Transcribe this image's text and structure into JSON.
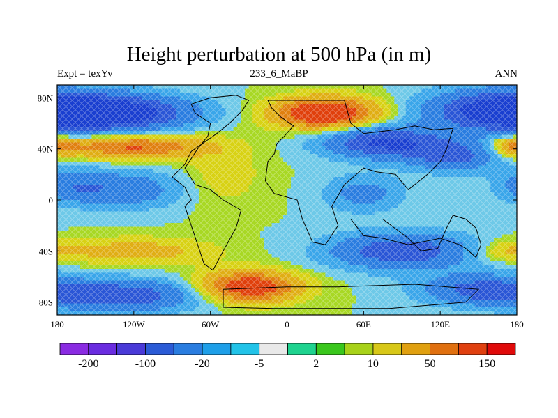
{
  "title": "Height perturbation at 500 hPa (in m)",
  "subtitle_left": "Expt = texYv",
  "subtitle_center": "233_6_MaBP",
  "subtitle_right": "ANN",
  "chart_data": {
    "type": "heatmap",
    "title": "Height perturbation at 500 hPa (in m)",
    "xlim": [
      -180,
      180
    ],
    "ylim": [
      -90,
      90
    ],
    "x_ticks": [
      {
        "value": -180,
        "label": "180"
      },
      {
        "value": -120,
        "label": "120W"
      },
      {
        "value": -60,
        "label": "60W"
      },
      {
        "value": 0,
        "label": "0"
      },
      {
        "value": 60,
        "label": "60E"
      },
      {
        "value": 120,
        "label": "120E"
      },
      {
        "value": 180,
        "label": "180"
      }
    ],
    "y_ticks": [
      {
        "value": 80,
        "label": "80N"
      },
      {
        "value": 40,
        "label": "40N"
      },
      {
        "value": 0,
        "label": "0"
      },
      {
        "value": -40,
        "label": "40S"
      },
      {
        "value": -80,
        "label": "80S"
      }
    ],
    "colorbar": {
      "colors": [
        "#8a2be2",
        "#6a2ce0",
        "#4a3ad8",
        "#2b5bd6",
        "#2a7de0",
        "#1e9fe8",
        "#22c3e8",
        "#e9e9e9",
        "#1fd38f",
        "#3ac71d",
        "#a8d21a",
        "#d8c818",
        "#e0a010",
        "#e07010",
        "#e04010",
        "#e00a0a"
      ],
      "labels": [
        {
          "boundary": 1,
          "text": "-200"
        },
        {
          "boundary": 3,
          "text": "-100"
        },
        {
          "boundary": 5,
          "text": "-20"
        },
        {
          "boundary": 7,
          "text": "-5"
        },
        {
          "boundary": 9,
          "text": "2"
        },
        {
          "boundary": 11,
          "text": "10"
        },
        {
          "boundary": 13,
          "text": "50"
        },
        {
          "boundary": 15,
          "text": "150"
        }
      ]
    },
    "field_levels": [
      {
        "min": -1000,
        "max": -150,
        "color": "#1a3fd0"
      },
      {
        "min": -150,
        "max": -100,
        "color": "#2a56d6"
      },
      {
        "min": -100,
        "max": -50,
        "color": "#2a7de0"
      },
      {
        "min": -50,
        "max": -20,
        "color": "#3aa6ea"
      },
      {
        "min": -20,
        "max": 0,
        "color": "#6ec9e8"
      },
      {
        "min": 0,
        "max": 15,
        "color": "#a8d824"
      },
      {
        "min": 15,
        "max": 40,
        "color": "#d8d214"
      },
      {
        "min": 40,
        "max": 80,
        "color": "#e0ae14"
      },
      {
        "min": 80,
        "max": 120,
        "color": "#e08010"
      },
      {
        "min": 120,
        "max": 1000,
        "color": "#e0400c"
      }
    ],
    "features": [
      {
        "lon": -135,
        "lat": 68,
        "value": -190,
        "slon": 60,
        "slat": 14
      },
      {
        "lon": 165,
        "lat": 70,
        "value": -170,
        "slon": 55,
        "slat": 16
      },
      {
        "lon": 75,
        "lat": 45,
        "value": -160,
        "slon": 45,
        "slat": 12
      },
      {
        "lon": 130,
        "lat": 35,
        "value": -120,
        "slon": 35,
        "slat": 12
      },
      {
        "lon": -120,
        "lat": 42,
        "value": 130,
        "slon": 55,
        "slat": 9
      },
      {
        "lon": 30,
        "lat": 68,
        "value": 190,
        "slon": 40,
        "slat": 12
      },
      {
        "lon": 178,
        "lat": 42,
        "value": 90,
        "slon": 18,
        "slat": 8
      },
      {
        "lon": -130,
        "lat": 8,
        "value": -90,
        "slon": 45,
        "slat": 14
      },
      {
        "lon": -170,
        "lat": 12,
        "value": -60,
        "slon": 25,
        "slat": 12
      },
      {
        "lon": -130,
        "lat": -75,
        "value": -140,
        "slon": 60,
        "slat": 12
      },
      {
        "lon": 90,
        "lat": -40,
        "value": -140,
        "slon": 55,
        "slat": 14
      },
      {
        "lon": 150,
        "lat": -70,
        "value": -110,
        "slon": 45,
        "slat": 12
      },
      {
        "lon": 60,
        "lat": 5,
        "value": -70,
        "slon": 30,
        "slat": 14
      },
      {
        "lon": -30,
        "lat": -68,
        "value": 170,
        "slon": 38,
        "slat": 12
      },
      {
        "lon": -120,
        "lat": -40,
        "value": 60,
        "slon": 60,
        "slat": 10
      },
      {
        "lon": 170,
        "lat": -40,
        "value": 40,
        "slon": 25,
        "slat": 8
      },
      {
        "lon": -50,
        "lat": 20,
        "value": 30,
        "slon": 30,
        "slat": 25
      }
    ],
    "continent_outlines": [
      [
        [
          -15,
          78
        ],
        [
          45,
          78
        ],
        [
          50,
          60
        ],
        [
          60,
          52
        ],
        [
          85,
          55
        ],
        [
          100,
          58
        ],
        [
          115,
          55
        ],
        [
          130,
          56
        ],
        [
          125,
          40
        ],
        [
          120,
          30
        ],
        [
          110,
          20
        ],
        [
          100,
          12
        ],
        [
          95,
          8
        ],
        [
          85,
          20
        ],
        [
          70,
          22
        ],
        [
          60,
          25
        ],
        [
          45,
          12
        ],
        [
          35,
          -5
        ],
        [
          40,
          -20
        ],
        [
          30,
          -35
        ],
        [
          20,
          -33
        ],
        [
          12,
          -15
        ],
        [
          8,
          0
        ],
        [
          -10,
          5
        ],
        [
          -17,
          15
        ],
        [
          -15,
          30
        ],
        [
          -10,
          36
        ],
        [
          -8,
          44
        ],
        [
          -2,
          50
        ],
        [
          5,
          58
        ],
        [
          -5,
          65
        ],
        [
          -12,
          72
        ],
        [
          -15,
          78
        ]
      ],
      [
        [
          -75,
          75
        ],
        [
          -60,
          80
        ],
        [
          -40,
          82
        ],
        [
          -30,
          78
        ],
        [
          -35,
          70
        ],
        [
          -45,
          60
        ],
        [
          -55,
          52
        ],
        [
          -65,
          45
        ],
        [
          -75,
          38
        ],
        [
          -80,
          28
        ],
        [
          -90,
          18
        ],
        [
          -80,
          10
        ],
        [
          -75,
          0
        ],
        [
          -80,
          -5
        ],
        [
          -75,
          -20
        ],
        [
          -70,
          -35
        ],
        [
          -65,
          -50
        ],
        [
          -58,
          -55
        ],
        [
          -50,
          -40
        ],
        [
          -40,
          -22
        ],
        [
          -36,
          -8
        ],
        [
          -50,
          0
        ],
        [
          -60,
          8
        ],
        [
          -72,
          12
        ],
        [
          -80,
          25
        ],
        [
          -70,
          40
        ],
        [
          -62,
          50
        ],
        [
          -60,
          60
        ],
        [
          -72,
          68
        ],
        [
          -75,
          75
        ]
      ],
      [
        [
          50,
          -15
        ],
        [
          75,
          -15
        ],
        [
          95,
          -30
        ],
        [
          105,
          -40
        ],
        [
          118,
          -38
        ],
        [
          125,
          -22
        ],
        [
          130,
          -12
        ],
        [
          140,
          -15
        ],
        [
          148,
          -22
        ],
        [
          152,
          -35
        ],
        [
          148,
          -45
        ],
        [
          140,
          -38
        ],
        [
          135,
          -35
        ],
        [
          120,
          -30
        ],
        [
          110,
          -32
        ],
        [
          95,
          -35
        ],
        [
          75,
          -30
        ],
        [
          60,
          -28
        ],
        [
          50,
          -15
        ]
      ],
      [
        [
          -50,
          -70
        ],
        [
          0,
          -68
        ],
        [
          40,
          -68
        ],
        [
          100,
          -66
        ],
        [
          150,
          -70
        ],
        [
          140,
          -80
        ],
        [
          80,
          -85
        ],
        [
          -10,
          -85
        ],
        [
          -50,
          -84
        ],
        [
          -50,
          -70
        ]
      ]
    ]
  }
}
